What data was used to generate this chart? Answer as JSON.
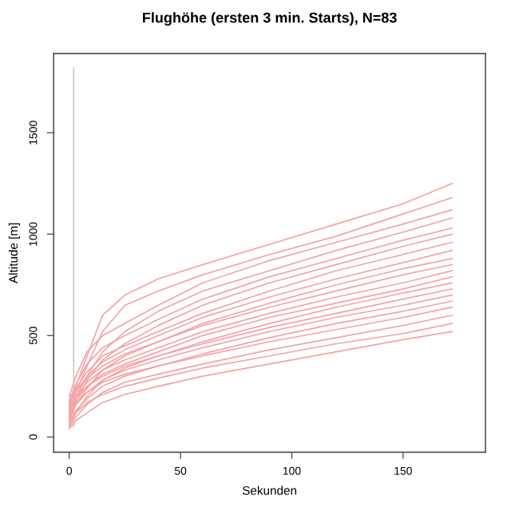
{
  "chart_data": {
    "type": "line",
    "title": "Flughöhe (ersten 3 min. Starts), N=83",
    "xlabel": "Sekunden",
    "ylabel": "Altitude [m]",
    "x": [
      0,
      3,
      8,
      15,
      25,
      40,
      60,
      90,
      120,
      150,
      172
    ],
    "xlim": [
      -7,
      187
    ],
    "xticks": [
      0,
      50,
      100,
      150
    ],
    "ylim": [
      -75,
      1890
    ],
    "yticks": [
      0,
      500,
      1000,
      1500
    ],
    "grid": false,
    "marker": "none",
    "line_style": "solid",
    "series": [
      {
        "color": "#c8c8c8",
        "x": [
          2,
          2
        ],
        "values": [
          50,
          1820
        ]
      },
      {
        "color": "#f5a3a3",
        "values": [
          150,
          250,
          400,
          600,
          700,
          780,
          850,
          950,
          1050,
          1150,
          1250
        ]
      },
      {
        "color": "#f5a3a3",
        "values": [
          120,
          220,
          350,
          520,
          650,
          720,
          800,
          900,
          990,
          1100,
          1180
        ]
      },
      {
        "color": "#f5a3a3",
        "values": [
          200,
          300,
          420,
          500,
          560,
          650,
          760,
          870,
          960,
          1050,
          1120
        ]
      },
      {
        "color": "#f5a3a3",
        "values": [
          100,
          200,
          300,
          420,
          520,
          620,
          720,
          820,
          920,
          1010,
          1080
        ]
      },
      {
        "color": "#f5a3a3",
        "values": [
          180,
          260,
          360,
          440,
          500,
          580,
          680,
          790,
          880,
          970,
          1030
        ]
      },
      {
        "color": "#f5a3a3",
        "values": [
          90,
          180,
          280,
          380,
          460,
          550,
          650,
          760,
          850,
          940,
          1000
        ]
      },
      {
        "color": "#f5a3a3",
        "values": [
          160,
          240,
          320,
          400,
          450,
          520,
          610,
          720,
          820,
          900,
          960
        ]
      },
      {
        "color": "#f5a3a3",
        "values": [
          140,
          220,
          300,
          370,
          430,
          500,
          590,
          690,
          780,
          860,
          920
        ]
      },
      {
        "color": "#f5a3a3",
        "values": [
          80,
          160,
          240,
          330,
          400,
          470,
          560,
          660,
          750,
          830,
          880
        ]
      },
      {
        "color": "#f5a3a3",
        "values": [
          170,
          230,
          290,
          350,
          410,
          470,
          550,
          640,
          720,
          800,
          850
        ]
      },
      {
        "color": "#f5a3a3",
        "values": [
          130,
          200,
          270,
          330,
          380,
          440,
          520,
          610,
          690,
          760,
          820
        ]
      },
      {
        "color": "#f5a3a3",
        "values": [
          110,
          180,
          250,
          310,
          360,
          420,
          500,
          590,
          660,
          730,
          790
        ]
      },
      {
        "color": "#f5a3a3",
        "values": [
          60,
          120,
          200,
          280,
          340,
          400,
          470,
          560,
          640,
          710,
          760
        ]
      },
      {
        "color": "#f5a3a3",
        "values": [
          150,
          200,
          250,
          300,
          350,
          400,
          460,
          540,
          610,
          680,
          730
        ]
      },
      {
        "color": "#f5a3a3",
        "values": [
          100,
          160,
          220,
          280,
          330,
          380,
          440,
          520,
          590,
          650,
          700
        ]
      },
      {
        "color": "#f5a3a3",
        "values": [
          70,
          130,
          190,
          250,
          300,
          350,
          410,
          490,
          560,
          620,
          670
        ]
      },
      {
        "color": "#f5a3a3",
        "values": [
          120,
          170,
          220,
          270,
          310,
          350,
          400,
          470,
          530,
          590,
          640
        ]
      },
      {
        "color": "#f5a3a3",
        "values": [
          50,
          100,
          160,
          220,
          270,
          310,
          360,
          430,
          490,
          550,
          600
        ]
      },
      {
        "color": "#f5a3a3",
        "values": [
          80,
          120,
          170,
          210,
          250,
          290,
          340,
          400,
          460,
          510,
          560
        ]
      },
      {
        "color": "#f5a3a3",
        "values": [
          40,
          80,
          120,
          170,
          210,
          250,
          300,
          360,
          420,
          480,
          520
        ]
      }
    ]
  }
}
